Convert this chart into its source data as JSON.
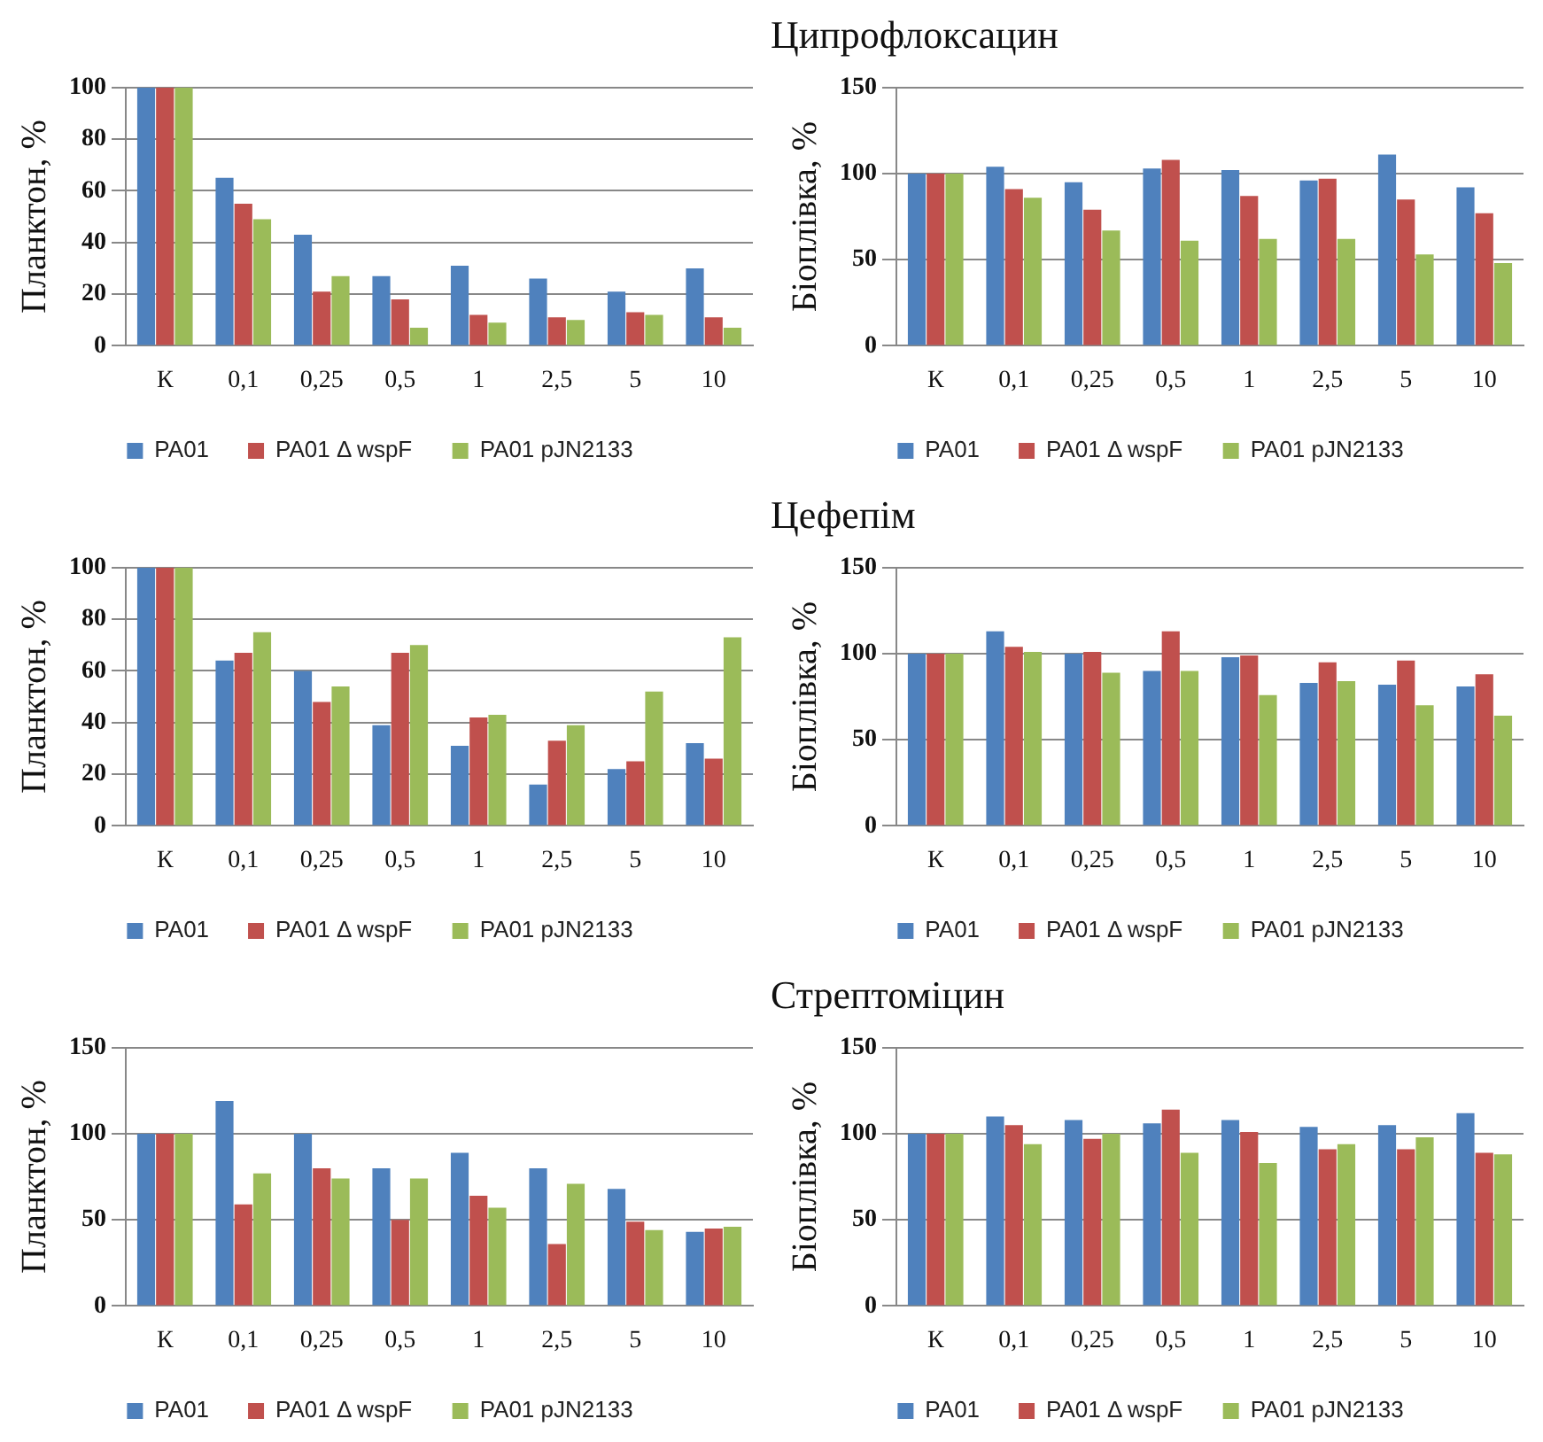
{
  "chart_data": [
    {
      "type": "bar",
      "ylabel": "Планктон, %",
      "categories": [
        "К",
        "0,1",
        "0,25",
        "0,5",
        "1",
        "2,5",
        "5",
        "10"
      ],
      "ylim": [
        0,
        100
      ],
      "yticks": [
        0,
        20,
        40,
        60,
        80,
        100
      ],
      "grid": "y",
      "legend": "bottom",
      "series": [
        {
          "name": "PA01",
          "color": "#4f81bd",
          "values": [
            100,
            65,
            43,
            27,
            31,
            26,
            21,
            30
          ]
        },
        {
          "name": "PA01 Δ wspF",
          "color": "#c0504d",
          "values": [
            100,
            55,
            21,
            18,
            12,
            11,
            13,
            11
          ]
        },
        {
          "name": "PA01 pJN2133",
          "color": "#9bbb59",
          "values": [
            100,
            49,
            27,
            7,
            9,
            10,
            12,
            7
          ]
        }
      ]
    },
    {
      "type": "bar",
      "title": "Ципрофлоксацин",
      "ylabel": "Біоплівка, %",
      "categories": [
        "К",
        "0,1",
        "0,25",
        "0,5",
        "1",
        "2,5",
        "5",
        "10"
      ],
      "ylim": [
        0,
        150
      ],
      "yticks": [
        0,
        50,
        100,
        150
      ],
      "grid": "y",
      "legend": "bottom",
      "series": [
        {
          "name": "PA01",
          "color": "#4f81bd",
          "values": [
            100,
            104,
            95,
            103,
            102,
            96,
            111,
            92
          ]
        },
        {
          "name": "PA01 Δ wspF",
          "color": "#c0504d",
          "values": [
            100,
            91,
            79,
            108,
            87,
            97,
            85,
            77
          ]
        },
        {
          "name": "PA01 pJN2133",
          "color": "#9bbb59",
          "values": [
            100,
            86,
            67,
            61,
            62,
            62,
            53,
            48
          ]
        }
      ]
    },
    {
      "type": "bar",
      "ylabel": "Планктон, %",
      "categories": [
        "К",
        "0,1",
        "0,25",
        "0,5",
        "1",
        "2,5",
        "5",
        "10"
      ],
      "ylim": [
        0,
        100
      ],
      "yticks": [
        0,
        20,
        40,
        60,
        80,
        100
      ],
      "grid": "y",
      "legend": "bottom",
      "series": [
        {
          "name": "PA01",
          "color": "#4f81bd",
          "values": [
            100,
            64,
            60,
            39,
            31,
            16,
            22,
            32
          ]
        },
        {
          "name": "PA01 Δ wspF",
          "color": "#c0504d",
          "values": [
            100,
            67,
            48,
            67,
            42,
            33,
            25,
            26
          ]
        },
        {
          "name": "PA01 pJN2133",
          "color": "#9bbb59",
          "values": [
            100,
            75,
            54,
            70,
            43,
            39,
            52,
            73
          ]
        }
      ]
    },
    {
      "type": "bar",
      "title": "Цефепім",
      "ylabel": "Біоплівка, %",
      "categories": [
        "К",
        "0,1",
        "0,25",
        "0,5",
        "1",
        "2,5",
        "5",
        "10"
      ],
      "ylim": [
        0,
        150
      ],
      "yticks": [
        0,
        50,
        100,
        150
      ],
      "grid": "y",
      "legend": "bottom",
      "series": [
        {
          "name": "PA01",
          "color": "#4f81bd",
          "values": [
            100,
            113,
            100,
            90,
            98,
            83,
            82,
            81
          ]
        },
        {
          "name": "PA01 Δ wspF",
          "color": "#c0504d",
          "values": [
            100,
            104,
            101,
            113,
            99,
            95,
            96,
            88
          ]
        },
        {
          "name": "PA01 pJN2133",
          "color": "#9bbb59",
          "values": [
            100,
            101,
            89,
            90,
            76,
            84,
            70,
            64
          ]
        }
      ]
    },
    {
      "type": "bar",
      "ylabel": "Планктон, %",
      "categories": [
        "К",
        "0,1",
        "0,25",
        "0,5",
        "1",
        "2,5",
        "5",
        "10"
      ],
      "ylim": [
        0,
        150
      ],
      "yticks": [
        0,
        50,
        100,
        150
      ],
      "grid": "y",
      "legend": "bottom",
      "series": [
        {
          "name": "PA01",
          "color": "#4f81bd",
          "values": [
            100,
            119,
            100,
            80,
            89,
            80,
            68,
            43
          ]
        },
        {
          "name": "PA01 Δ wspF",
          "color": "#c0504d",
          "values": [
            100,
            59,
            80,
            50,
            64,
            36,
            49,
            45
          ]
        },
        {
          "name": "PA01 pJN2133",
          "color": "#9bbb59",
          "values": [
            100,
            77,
            74,
            74,
            57,
            71,
            44,
            46
          ]
        }
      ]
    },
    {
      "type": "bar",
      "title": "Стрептоміцин",
      "ylabel": "Біоплівка, %",
      "categories": [
        "К",
        "0,1",
        "0,25",
        "0,5",
        "1",
        "2,5",
        "5",
        "10"
      ],
      "ylim": [
        0,
        150
      ],
      "yticks": [
        0,
        50,
        100,
        150
      ],
      "grid": "y",
      "legend": "bottom",
      "series": [
        {
          "name": "PA01",
          "color": "#4f81bd",
          "values": [
            100,
            110,
            108,
            106,
            108,
            104,
            105,
            112
          ]
        },
        {
          "name": "PA01 Δ wspF",
          "color": "#c0504d",
          "values": [
            100,
            105,
            97,
            114,
            101,
            91,
            91,
            89
          ]
        },
        {
          "name": "PA01 pJN2133",
          "color": "#9bbb59",
          "values": [
            100,
            94,
            100,
            89,
            83,
            94,
            98,
            88
          ]
        }
      ]
    }
  ]
}
